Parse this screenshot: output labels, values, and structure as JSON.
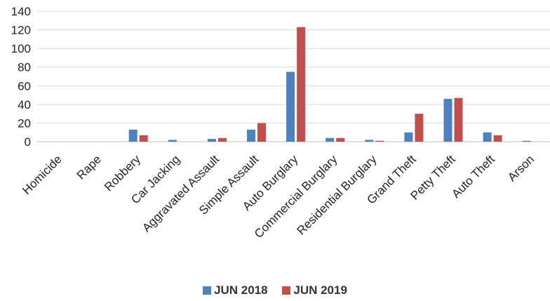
{
  "chart_data": {
    "type": "bar",
    "categories": [
      "Homicide",
      "Rape",
      "Robbery",
      "Car Jacking",
      "Aggravated Assault",
      "Simple Assault",
      "Auto Burglary",
      "Commercial Burglary",
      "Residential Burglary",
      "Grand Theft",
      "Petty Theft",
      "Auto Theft",
      "Arson"
    ],
    "series": [
      {
        "name": "JUN 2018",
        "color": "#4F81BD",
        "values": [
          0,
          0,
          13,
          2,
          3,
          13,
          75,
          4,
          2,
          10,
          46,
          10,
          1
        ]
      },
      {
        "name": "JUN 2019",
        "color": "#C0504D",
        "values": [
          0,
          0,
          7,
          0,
          4,
          20,
          123,
          4,
          1,
          30,
          47,
          7,
          0
        ]
      }
    ],
    "title": "",
    "xlabel": "",
    "ylabel": "",
    "ylim": [
      0,
      140
    ],
    "yticks": [
      0,
      20,
      40,
      60,
      80,
      100,
      120,
      140
    ],
    "grid": "horizontal",
    "legend": "bottom"
  }
}
